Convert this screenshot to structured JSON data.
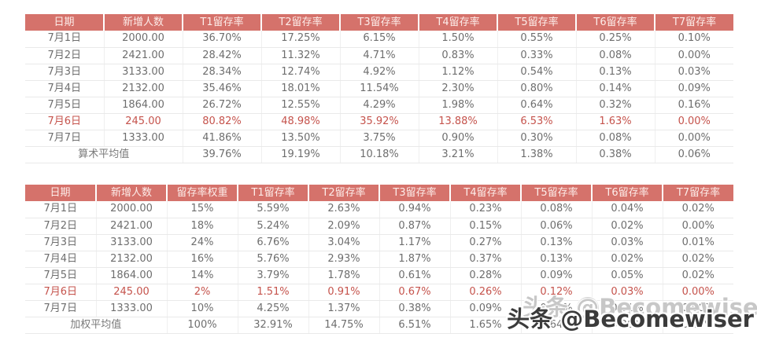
{
  "watermark": {
    "text": "头条 @Becomewiser",
    "ghost_text": "头条 @Becomewiser"
  },
  "colors": {
    "header_bg": "#D5726B",
    "header_text": "#FDEDEA",
    "body_text": "#6E6E6E",
    "highlight_text": "#C5534C",
    "grid_line": "#E9E9E9"
  },
  "chart_data": [
    {
      "type": "table",
      "columns": [
        "日期",
        "新增人数",
        "T1留存率",
        "T2留存率",
        "T3留存率",
        "T4留存率",
        "T5留存率",
        "T6留存率",
        "T7留存率"
      ],
      "rows": [
        {
          "highlight": false,
          "cells": [
            "7月1日",
            "2000.00",
            "36.70%",
            "17.25%",
            "6.15%",
            "1.50%",
            "0.55%",
            "0.25%",
            "0.10%"
          ]
        },
        {
          "highlight": false,
          "cells": [
            "7月2日",
            "2421.00",
            "28.42%",
            "11.32%",
            "4.71%",
            "0.83%",
            "0.33%",
            "0.08%",
            "0.00%"
          ]
        },
        {
          "highlight": false,
          "cells": [
            "7月3日",
            "3133.00",
            "28.34%",
            "12.74%",
            "4.92%",
            "1.12%",
            "0.54%",
            "0.13%",
            "0.03%"
          ]
        },
        {
          "highlight": false,
          "cells": [
            "7月4日",
            "2132.00",
            "35.46%",
            "18.01%",
            "11.54%",
            "2.30%",
            "0.80%",
            "0.14%",
            "0.09%"
          ]
        },
        {
          "highlight": false,
          "cells": [
            "7月5日",
            "1864.00",
            "26.72%",
            "12.55%",
            "4.29%",
            "1.98%",
            "0.64%",
            "0.32%",
            "0.16%"
          ]
        },
        {
          "highlight": true,
          "cells": [
            "7月6日",
            "245.00",
            "80.82%",
            "48.98%",
            "35.92%",
            "13.88%",
            "6.53%",
            "1.63%",
            "0.00%"
          ]
        },
        {
          "highlight": false,
          "cells": [
            "7月7日",
            "1333.00",
            "41.86%",
            "13.50%",
            "3.75%",
            "0.90%",
            "0.30%",
            "0.08%",
            "0.00%"
          ]
        }
      ],
      "footer": {
        "label": "算术平均值",
        "label_span": 2,
        "values": [
          "39.76%",
          "19.19%",
          "10.18%",
          "3.21%",
          "1.38%",
          "0.38%",
          "0.06%"
        ]
      }
    },
    {
      "type": "table",
      "columns": [
        "日期",
        "新增人数",
        "留存率权重",
        "T1留存率",
        "T2留存率",
        "T3留存率",
        "T4留存率",
        "T5留存率",
        "T6留存率",
        "T7留存率"
      ],
      "rows": [
        {
          "highlight": false,
          "cells": [
            "7月1日",
            "2000.00",
            "15%",
            "5.59%",
            "2.63%",
            "0.94%",
            "0.23%",
            "0.08%",
            "0.04%",
            "0.02%"
          ]
        },
        {
          "highlight": false,
          "cells": [
            "7月2日",
            "2421.00",
            "18%",
            "5.24%",
            "2.09%",
            "0.87%",
            "0.15%",
            "0.06%",
            "0.02%",
            "0.00%"
          ]
        },
        {
          "highlight": false,
          "cells": [
            "7月3日",
            "3133.00",
            "24%",
            "6.76%",
            "3.04%",
            "1.17%",
            "0.27%",
            "0.13%",
            "0.03%",
            "0.01%"
          ]
        },
        {
          "highlight": false,
          "cells": [
            "7月4日",
            "2132.00",
            "16%",
            "5.76%",
            "2.93%",
            "1.87%",
            "0.37%",
            "0.13%",
            "0.02%",
            "0.02%"
          ]
        },
        {
          "highlight": false,
          "cells": [
            "7月5日",
            "1864.00",
            "14%",
            "3.79%",
            "1.78%",
            "0.61%",
            "0.28%",
            "0.09%",
            "0.05%",
            "0.02%"
          ]
        },
        {
          "highlight": true,
          "cells": [
            "7月6日",
            "245.00",
            "2%",
            "1.51%",
            "0.91%",
            "0.67%",
            "0.26%",
            "0.12%",
            "0.03%",
            "0.00%"
          ]
        },
        {
          "highlight": false,
          "cells": [
            "7月7日",
            "1333.00",
            "10%",
            "4.25%",
            "1.37%",
            "0.38%",
            "0.09%",
            "0.03%",
            "0.01%",
            "0.00%"
          ]
        }
      ],
      "footer": {
        "label": "加权平均值",
        "label_span": 2,
        "values": [
          "100%",
          "32.91%",
          "14.75%",
          "6.51%",
          "1.65%",
          "0.64%",
          "0.20%",
          "0.07%"
        ]
      }
    }
  ]
}
